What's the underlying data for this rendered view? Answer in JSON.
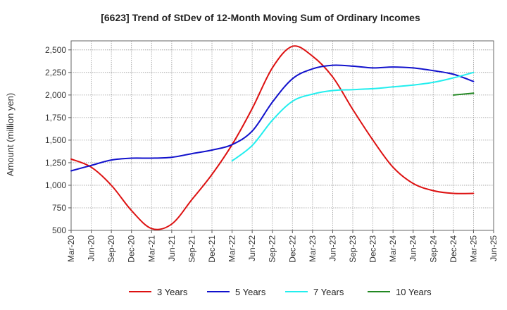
{
  "chart_data": {
    "type": "line",
    "title": "[6623]  Trend of StDev of 12-Month Moving Sum of Ordinary Incomes",
    "xlabel": "",
    "ylabel": "Amount (million yen)",
    "ylim": [
      500,
      2600
    ],
    "yticks": [
      500,
      750,
      1000,
      1250,
      1500,
      1750,
      2000,
      2250,
      2500
    ],
    "ytick_labels": [
      "500",
      "750",
      "1,000",
      "1,250",
      "1,500",
      "1,750",
      "2,000",
      "2,250",
      "2,500"
    ],
    "x_tick_labels": [
      "Mar-20",
      "Jun-20",
      "Sep-20",
      "Dec-20",
      "Mar-21",
      "Jun-21",
      "Sep-21",
      "Dec-21",
      "Mar-22",
      "Jun-22",
      "Sep-22",
      "Dec-22",
      "Mar-23",
      "Jun-23",
      "Sep-23",
      "Dec-23",
      "Mar-24",
      "Jun-24",
      "Sep-24",
      "Dec-24",
      "Mar-25",
      "Jun-25"
    ],
    "x": [
      "Mar-20",
      "Jun-20",
      "Sep-20",
      "Dec-20",
      "Mar-21",
      "Jun-21",
      "Sep-21",
      "Dec-21",
      "Mar-22",
      "Jun-22",
      "Sep-22",
      "Dec-22",
      "Mar-23",
      "Jun-23",
      "Sep-23",
      "Dec-23",
      "Mar-24",
      "Jun-24",
      "Sep-24",
      "Dec-24",
      "Mar-25"
    ],
    "grid": true,
    "legend_position": "bottom",
    "series": [
      {
        "name": "3 Years",
        "color": "#dd1111",
        "values": [
          1290,
          1200,
          1000,
          720,
          520,
          570,
          840,
          1120,
          1450,
          1850,
          2300,
          2540,
          2430,
          2200,
          1840,
          1500,
          1200,
          1020,
          940,
          910,
          910
        ]
      },
      {
        "name": "5 Years",
        "color": "#1111cc",
        "values": [
          1160,
          1220,
          1280,
          1300,
          1300,
          1310,
          1350,
          1390,
          1450,
          1600,
          1920,
          2180,
          2290,
          2330,
          2320,
          2300,
          2310,
          2300,
          2270,
          2230,
          2150
        ]
      },
      {
        "name": "7 Years",
        "color": "#22eeee",
        "values": [
          null,
          null,
          null,
          null,
          null,
          null,
          null,
          null,
          1270,
          1440,
          1720,
          1930,
          2010,
          2050,
          2060,
          2070,
          2090,
          2110,
          2140,
          2190,
          2250
        ]
      },
      {
        "name": "10 Years",
        "color": "#228822",
        "values": [
          null,
          null,
          null,
          null,
          null,
          null,
          null,
          null,
          null,
          null,
          null,
          null,
          null,
          null,
          null,
          null,
          null,
          null,
          null,
          2000,
          2020
        ]
      }
    ]
  }
}
